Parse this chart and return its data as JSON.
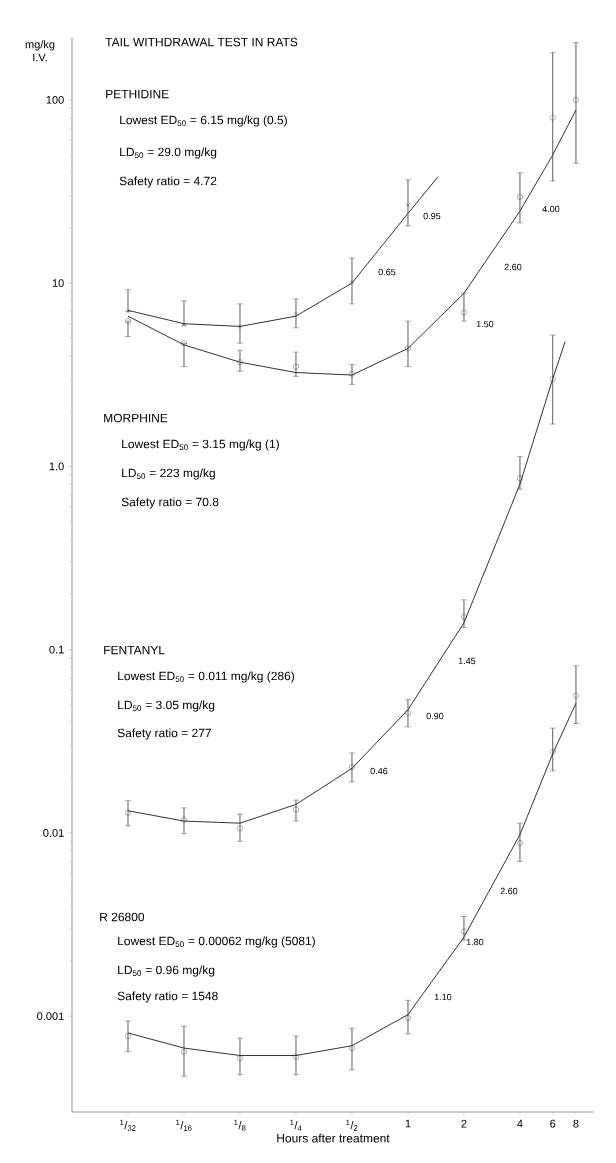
{
  "chart_data": {
    "type": "line",
    "title": "TAIL WITHDRAWAL TEST IN RATS",
    "xlabel": "Hours after treatment",
    "ylabel": "mg/kg I.V.",
    "log": "xy",
    "xlim": [
      0.015625,
      10
    ],
    "ylim": [
      0.0003,
      220
    ],
    "xticks": [
      {
        "value": 0.03125,
        "label": "$^{1}$/$_{32}$"
      },
      {
        "value": 0.0625,
        "label": "$^{1}$/$_{16}$"
      },
      {
        "value": 0.125,
        "label": "$^{1}$/$_{8}$"
      },
      {
        "value": 0.25,
        "label": "$^{1}$/$_{4}$"
      },
      {
        "value": 0.5,
        "label": "$^{1}$/$_{2}$"
      },
      1,
      2,
      4,
      6,
      8
    ],
    "yticks": [
      0.001,
      0.01,
      0.1,
      {
        "value": 1,
        "label": "1.0"
      },
      10,
      100
    ],
    "series": [
      {
        "color": "#333333",
        "marker": "none",
        "x": [
          0.03125,
          0.0625,
          0.125,
          0.25,
          0.5,
          1,
          1.45
        ],
        "values": [
          7.1,
          6.0,
          5.8,
          6.6,
          10,
          24,
          38
        ]
      },
      {
        "type": "scatter",
        "color": "#333333",
        "marker": "cross",
        "x": [
          0.03125,
          0.0625,
          0.125,
          0.25,
          0.5,
          1
        ],
        "values": [
          7.0,
          5.9,
          5.8,
          6.8,
          10.1,
          26.7
        ],
        "errors": [
          [
            7.0,
            9.2
          ],
          [
            5.9,
            8.0
          ],
          [
            4.7,
            7.7
          ],
          [
            5.7,
            8.2
          ],
          [
            7.7,
            13.7
          ],
          [
            20.5,
            36.6
          ]
        ]
      },
      {
        "color": "#333333",
        "marker": "none",
        "x": [
          0.03125,
          0.0625,
          0.125,
          0.25,
          0.5,
          1,
          2,
          4,
          6,
          8
        ],
        "values": [
          6.6,
          4.6,
          3.7,
          3.25,
          3.15,
          4.4,
          8.8,
          24.7,
          50,
          88
        ]
      },
      {
        "type": "scatter",
        "color": "#333333",
        "marker": "circle",
        "x": [
          0.03125,
          0.0625,
          0.125,
          0.25,
          0.5,
          1,
          2,
          4,
          6,
          8
        ],
        "values": [
          6.2,
          4.7,
          3.7,
          3.5,
          3.2,
          4.4,
          6.9,
          29.5,
          80,
          100
        ],
        "errors": [
          [
            5.1,
            6.2
          ],
          [
            3.5,
            4.7
          ],
          [
            3.3,
            4.3
          ],
          [
            3.1,
            4.2
          ],
          [
            2.8,
            3.6
          ],
          [
            3.5,
            6.2
          ],
          [
            6.2,
            8.8
          ],
          [
            21.3,
            40
          ],
          [
            36,
            181
          ],
          [
            45,
            205
          ]
        ]
      },
      {
        "color": "#333333",
        "marker": "none",
        "x": [
          0.03125,
          0.0625,
          0.125,
          0.25,
          0.5,
          1,
          2,
          4,
          6,
          7
        ],
        "values": [
          0.0132,
          0.0116,
          0.0113,
          0.0143,
          0.0225,
          0.047,
          0.14,
          0.8,
          3.0,
          4.8
        ]
      },
      {
        "type": "scatter",
        "color": "#333333",
        "marker": "circle",
        "x": [
          0.03125,
          0.0625,
          0.125,
          0.25,
          0.5,
          1,
          2,
          4,
          6
        ],
        "values": [
          0.0129,
          0.0118,
          0.0106,
          0.0134,
          0.0229,
          0.0452,
          0.151,
          0.86,
          2.99
        ],
        "errors": [
          [
            0.0109,
            0.015
          ],
          [
            0.0099,
            0.0137
          ],
          [
            0.009,
            0.0127
          ],
          [
            0.0116,
            0.0151
          ],
          [
            0.019,
            0.0273
          ],
          [
            0.0379,
            0.0533
          ],
          [
            0.132,
            0.187
          ],
          [
            0.75,
            1.13
          ],
          [
            1.7,
            5.2
          ]
        ]
      },
      {
        "color": "#333333",
        "marker": "none",
        "x": [
          0.03125,
          0.0625,
          0.125,
          0.25,
          0.5,
          1,
          2,
          4,
          6,
          8
        ],
        "values": [
          0.00081,
          0.00067,
          0.00061,
          0.00061,
          0.00069,
          0.00102,
          0.0027,
          0.0098,
          0.027,
          0.051
        ]
      },
      {
        "type": "scatter",
        "color": "#333333",
        "marker": "circle",
        "x": [
          0.03125,
          0.0625,
          0.125,
          0.25,
          0.5,
          1,
          2,
          4,
          6,
          8
        ],
        "values": [
          0.00078,
          0.00064,
          0.00059,
          0.0006,
          0.00067,
          0.00098,
          0.0029,
          0.0088,
          0.0277,
          0.0561
        ],
        "errors": [
          [
            0.00064,
            0.00094
          ],
          [
            0.00047,
            0.00088
          ],
          [
            0.00048,
            0.00076
          ],
          [
            0.00048,
            0.00078
          ],
          [
            0.00051,
            0.00086
          ],
          [
            0.0008,
            0.00122
          ],
          [
            0.0026,
            0.0035
          ],
          [
            0.007,
            0.0113
          ],
          [
            0.0218,
            0.0373
          ],
          [
            0.0395,
            0.0815
          ]
        ]
      }
    ],
    "annotations": [
      "PETHIDINE",
      "Lowest ED$_{50}$ = 6.15 mg/kg (0.5)",
      "LD$_{50}$ = 29.0 mg/kg",
      "Safety ratio = 4.72",
      "MORPHINE",
      "Lowest ED$_{50}$ = 3.15 mg/kg (1)",
      "LD$_{50}$ = 223 mg/kg",
      "Safety ratio = 70.8",
      "FENTANYL",
      "Lowest ED$_{50}$ = 0.011 mg/kg (286)",
      "LD$_{50}$ = 3.05 mg/kg",
      "Safety ratio = 277",
      "R 26800",
      "Lowest ED$_{50}$ = 0.00062 mg/kg (5081)",
      "LD$_{50}$ = 0.96 mg/kg",
      "Safety ratio = 1548",
      "0.95",
      "0.65",
      "4.00",
      "2.60",
      "1.50",
      "1.45",
      "0.90",
      "0.46",
      "2.60",
      "1.80",
      "1.10"
    ]
  }
}
